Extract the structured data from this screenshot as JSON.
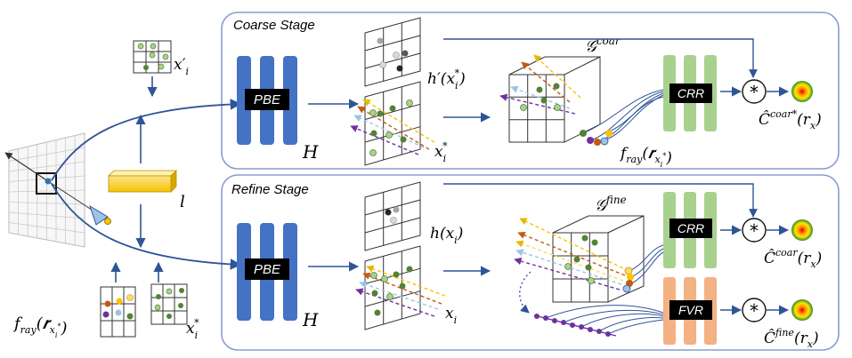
{
  "stages": {
    "coarse": {
      "title": "Coarse Stage"
    },
    "refine": {
      "title": "Refine Stage"
    }
  },
  "blocks": {
    "pbe": "PBE",
    "crr": "CRR",
    "fvr": "FVR",
    "star": "*"
  },
  "labels": {
    "H": "H",
    "l": "l",
    "x_i_prime": "x′",
    "x_i_prime_sub": "i",
    "x_i_star": "x",
    "x_i_star_sub": "i",
    "x_i_star_sup": "*",
    "x_i": "x",
    "x_i_sub": "i",
    "h_prime": "h′(x",
    "h_prime_sub": "i",
    "h_prime_sup": "*",
    "h_prime_close": ")",
    "h_plain": "h(x",
    "h_plain_sub": "i",
    "h_plain_close": ")",
    "g_coar": "𝒢",
    "g_coar_sup": "coar",
    "g_fine": "𝒢",
    "g_fine_sup": "fine",
    "f_ray": "f",
    "f_ray_sub": "ray",
    "f_ray_arg": "(𝒓",
    "f_ray_arg_sub": "x",
    "f_ray_arg_subsub": "i",
    "f_ray_arg_subsup": "*",
    "f_ray_close": ")",
    "c_coar_star": "Ĉ",
    "c_coar_star_sup": "coar*",
    "c_coar_star_arg": "(r",
    "c_coar_star_arg_sub": "x",
    "c_coar_star_close": ")",
    "c_coar": "Ĉ",
    "c_coar_sup": "coar",
    "c_coar_arg": "(r",
    "c_coar_arg_sub": "x",
    "c_coar_close": ")",
    "c_fine": "Ĉ",
    "c_fine_sup": "fine",
    "c_fine_arg": "(r",
    "c_fine_arg_sub": "x",
    "c_fine_close": ")"
  },
  "colors": {
    "panel_border": "#8a9ccf",
    "pbe_blue": "#4472c4",
    "crr_green": "#a9d18e",
    "fvr_orange": "#f4b183",
    "arrow_blue": "#2f5597",
    "feature_yellow": "#ffd966",
    "point_green": "#548235",
    "point_purple": "#7030a0"
  }
}
